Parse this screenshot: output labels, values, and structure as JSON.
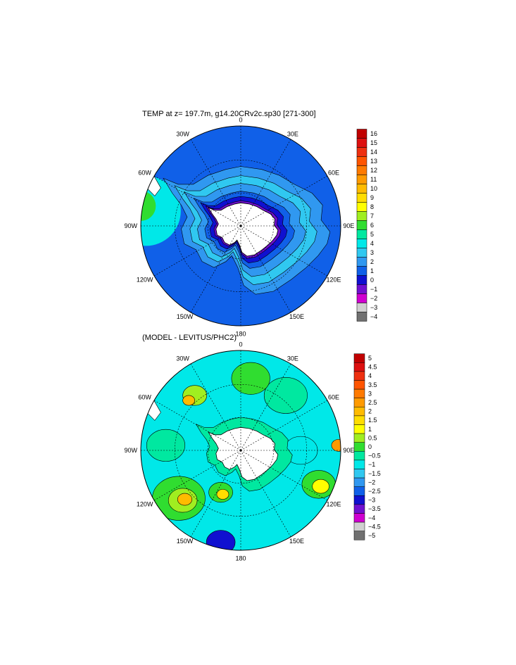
{
  "chart_data": [
    {
      "type": "heatmap",
      "title": "TEMP at z= 197.7m, g14.20CRv2c.sp30 [271-300]",
      "projection": "south polar stereographic",
      "longitude_labels": [
        "0",
        "30E",
        "60E",
        "90E",
        "120E",
        "150E",
        "180",
        "150W",
        "120W",
        "90W",
        "60W",
        "30W"
      ],
      "colorbar": {
        "levels": [
          "16",
          "15",
          "14",
          "13",
          "12",
          "11",
          "10",
          "9",
          "8",
          "7",
          "6",
          "5",
          "4",
          "3",
          "2",
          "1",
          "0",
          "−1",
          "−2",
          "−3",
          "−4"
        ],
        "colors": [
          "#c00000",
          "#dd1010",
          "#ee3010",
          "#ff5500",
          "#ff7a00",
          "#ff9a00",
          "#ffbb00",
          "#ffdd00",
          "#ffff00",
          "#a0ee20",
          "#30dd30",
          "#00e8a0",
          "#00e8e8",
          "#30c8f0",
          "#3098f0",
          "#1060e8",
          "#1010d0",
          "#7010d0",
          "#d000d0",
          "#d0d0d0",
          "#707070"
        ]
      }
    },
    {
      "type": "heatmap",
      "title": "(MODEL - LEVITUS/PHC2)",
      "projection": "south polar stereographic",
      "longitude_labels": [
        "0",
        "30E",
        "60E",
        "90E",
        "120E",
        "150E",
        "180",
        "150W",
        "120W",
        "90W",
        "60W",
        "30W"
      ],
      "colorbar": {
        "levels": [
          "5",
          "4.5",
          "4",
          "3.5",
          "3",
          "2.5",
          "2",
          "1.5",
          "1",
          "0.5",
          "0",
          "−0.5",
          "−1",
          "−1.5",
          "−2",
          "−2.5",
          "−3",
          "−3.5",
          "−4",
          "−4.5",
          "−5"
        ],
        "colors": [
          "#c00000",
          "#dd1010",
          "#ee3010",
          "#ff5500",
          "#ff7a00",
          "#ff9a00",
          "#ffbb00",
          "#ffdd00",
          "#ffff00",
          "#a0ee20",
          "#30dd30",
          "#00e8a0",
          "#00e8e8",
          "#30c8f0",
          "#3098f0",
          "#1060e8",
          "#1010d0",
          "#7010d0",
          "#d000d0",
          "#d0d0d0",
          "#707070"
        ]
      }
    }
  ]
}
